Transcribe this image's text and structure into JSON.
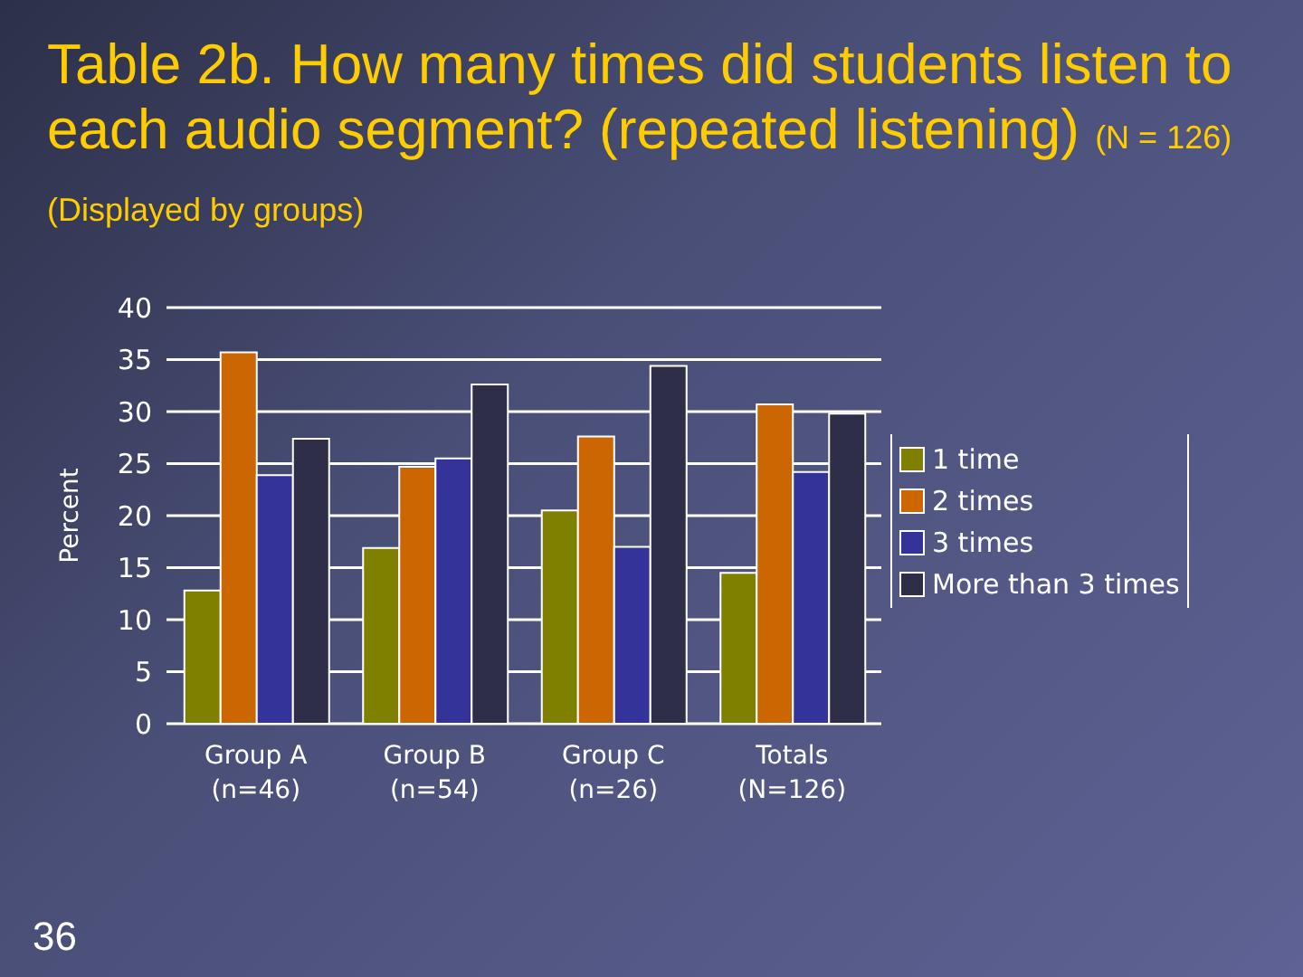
{
  "chart_data": {
    "type": "bar",
    "title": "Table 2b. How many times did students listen to each audio segment? (repeated listening)",
    "subtitle": "(N = 126) (Displayed by groups)",
    "ylabel": "Percent",
    "categories": [
      "Group A\n(n=46)",
      "Group B\n(n=54)",
      "Group C\n(n=26)",
      "Totals\n(N=126)"
    ],
    "series": [
      {
        "name": "1 time",
        "color": "#808000",
        "values": [
          12.8,
          16.9,
          20.5,
          14.5
        ]
      },
      {
        "name": "2 times",
        "color": "#cc6600",
        "values": [
          35.7,
          24.7,
          27.6,
          30.7
        ]
      },
      {
        "name": "3 times",
        "color": "#333399",
        "values": [
          23.9,
          25.5,
          17.0,
          24.2
        ]
      },
      {
        "name": "More than 3 times",
        "color": "#2e2e48",
        "values": [
          27.4,
          32.6,
          34.4,
          29.8
        ]
      }
    ],
    "ylim": [
      0,
      40
    ],
    "yticks": [
      0,
      5,
      10,
      15,
      20,
      25,
      30,
      35,
      40
    ],
    "grid": "y",
    "legend": "right",
    "annotations": [
      "36"
    ]
  }
}
